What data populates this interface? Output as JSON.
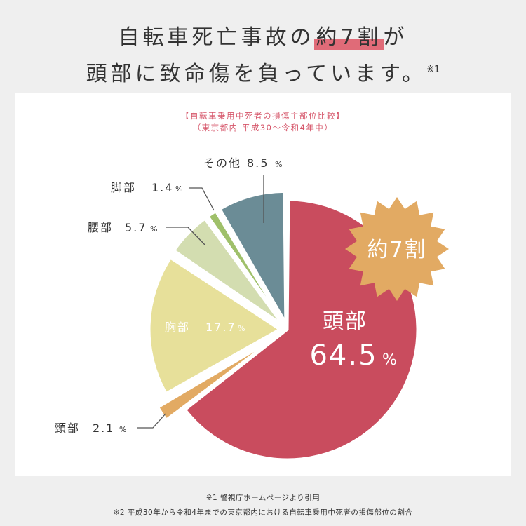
{
  "headline": {
    "line1_pre": "自転車死亡事故の",
    "line1_mark": "約7割",
    "line1_post": "が",
    "line2": "頭部に致命傷を負っています。",
    "line2_note": "※1"
  },
  "colors": {
    "background": "#efefef",
    "card": "#ffffff",
    "accent_red": "#d6566a",
    "badge": "#e2aa63"
  },
  "chart_data": {
    "type": "pie",
    "title": "【自転車乗用中死者の損傷主部位比較】",
    "subtitle": "（東京都内 平成30〜令和4年中）",
    "unit": "%",
    "badge": "約7割",
    "slices": [
      {
        "name": "頭部",
        "value": 64.5,
        "color": "#c94c5e",
        "display": "64.5"
      },
      {
        "name": "頸部",
        "value": 2.1,
        "color": "#e2aa63",
        "display": "2.1"
      },
      {
        "name": "胸部",
        "value": 17.7,
        "color": "#e7e09a",
        "display": "17.7"
      },
      {
        "name": "腰部",
        "value": 5.7,
        "color": "#d3ddb0",
        "display": "5.7"
      },
      {
        "name": "脚部",
        "value": 1.4,
        "color": "#9fc06a",
        "display": "1.4"
      },
      {
        "name": "その他",
        "value": 8.5,
        "color": "#6b8c96",
        "display": "8.5"
      }
    ]
  },
  "footnotes": [
    "※1 警視庁ホームページより引用",
    "※2 平成30年から令和4年までの東京都内における自転車乗用中死者の損傷部位の割合"
  ]
}
